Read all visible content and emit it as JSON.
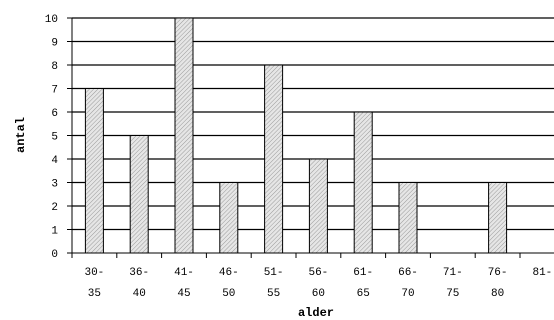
{
  "chart_data": {
    "type": "bar",
    "xlabel": "alder",
    "ylabel": "antal",
    "ylim": [
      0,
      10
    ],
    "yticks": [
      "0",
      "1",
      "2",
      "3",
      "4",
      "5",
      "6",
      "7",
      "8",
      "9",
      "10"
    ],
    "categories": [
      {
        "top": "30-",
        "bottom": "35"
      },
      {
        "top": "36-",
        "bottom": "40"
      },
      {
        "top": "41-",
        "bottom": "45"
      },
      {
        "top": "46-",
        "bottom": "50"
      },
      {
        "top": "51-",
        "bottom": "55"
      },
      {
        "top": "56-",
        "bottom": "60"
      },
      {
        "top": "61-",
        "bottom": "65"
      },
      {
        "top": "66-",
        "bottom": "70"
      },
      {
        "top": "71-",
        "bottom": "75"
      },
      {
        "top": "76-",
        "bottom": "80"
      },
      {
        "top": "81-",
        "bottom": ""
      }
    ],
    "values": [
      7,
      5,
      10,
      3,
      8,
      4,
      6,
      3,
      0,
      3,
      0
    ],
    "grid": true,
    "bar_fill": "#d0d0d0",
    "bar_pattern": "diagonal-hatch",
    "bar_edge": "#000000"
  }
}
